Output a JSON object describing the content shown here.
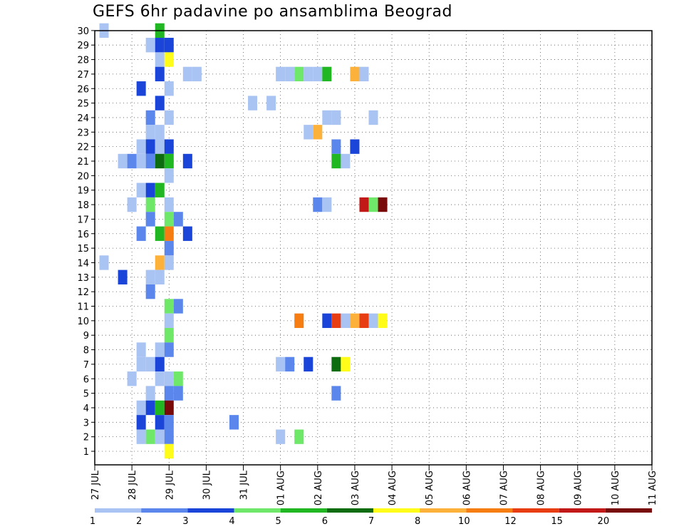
{
  "chart_data": {
    "type": "heatmap",
    "title": "GEFS 6hr padavine po ansamblima Beograd",
    "xlabel": "",
    "ylabel": "",
    "grid": true,
    "x_tick_labels": [
      "27 JUL",
      "28 JUL",
      "29 JUL",
      "30 JUL",
      "31 JUL",
      "01 AUG",
      "02 AUG",
      "03 AUG",
      "04 AUG",
      "05 AUG",
      "06 AUG",
      "07 AUG",
      "08 AUG",
      "09 AUG",
      "10 AUG",
      "11 AUG"
    ],
    "y_tick_labels": [
      "1",
      "2",
      "3",
      "4",
      "5",
      "6",
      "7",
      "8",
      "9",
      "10",
      "11",
      "12",
      "13",
      "14",
      "15",
      "16",
      "17",
      "18",
      "19",
      "20",
      "21",
      "22",
      "23",
      "24",
      "25",
      "26",
      "27",
      "28",
      "29",
      "30"
    ],
    "xlim": [
      0,
      60
    ],
    "ylim": [
      0,
      30
    ],
    "colorbar": {
      "thresholds": [
        "1",
        "2",
        "3",
        "4",
        "5",
        "6",
        "7",
        "8",
        "10",
        "12",
        "15",
        "20"
      ],
      "colors": [
        "#a9c3f2",
        "#5b86ec",
        "#1a45d8",
        "#6fe86a",
        "#20b722",
        "#0d6b10",
        "#fffc1a",
        "#fcb13a",
        "#f57d12",
        "#e83d12",
        "#c21818",
        "#780a0a"
      ]
    },
    "cells": [
      [
        30,
        7,
        4
      ],
      [
        30,
        1,
        0
      ],
      [
        29,
        6,
        0
      ],
      [
        29,
        7,
        2
      ],
      [
        29,
        8,
        2
      ],
      [
        28,
        7,
        0
      ],
      [
        28,
        8,
        6
      ],
      [
        27,
        7,
        2
      ],
      [
        27,
        10,
        0
      ],
      [
        27,
        11,
        0
      ],
      [
        27,
        20,
        0
      ],
      [
        27,
        21,
        0
      ],
      [
        27,
        22,
        3
      ],
      [
        27,
        23,
        0
      ],
      [
        27,
        24,
        0
      ],
      [
        27,
        25,
        4
      ],
      [
        27,
        28,
        7
      ],
      [
        27,
        29,
        0
      ],
      [
        26,
        5,
        2
      ],
      [
        26,
        8,
        0
      ],
      [
        25,
        7,
        2
      ],
      [
        25,
        17,
        0
      ],
      [
        25,
        19,
        0
      ],
      [
        24,
        6,
        1
      ],
      [
        24,
        8,
        0
      ],
      [
        24,
        25,
        0
      ],
      [
        24,
        26,
        0
      ],
      [
        24,
        30,
        0
      ],
      [
        23,
        6,
        0
      ],
      [
        23,
        7,
        0
      ],
      [
        23,
        23,
        0
      ],
      [
        23,
        24,
        7
      ],
      [
        22,
        5,
        0
      ],
      [
        22,
        6,
        2
      ],
      [
        22,
        7,
        0
      ],
      [
        22,
        8,
        2
      ],
      [
        22,
        26,
        1
      ],
      [
        22,
        28,
        2
      ],
      [
        21,
        3,
        0
      ],
      [
        21,
        4,
        1
      ],
      [
        21,
        5,
        0
      ],
      [
        21,
        6,
        1
      ],
      [
        21,
        7,
        5
      ],
      [
        21,
        8,
        4
      ],
      [
        21,
        10,
        2
      ],
      [
        21,
        26,
        4
      ],
      [
        21,
        27,
        0
      ],
      [
        20,
        8,
        0
      ],
      [
        19,
        5,
        0
      ],
      [
        19,
        6,
        2
      ],
      [
        19,
        7,
        4
      ],
      [
        18,
        4,
        0
      ],
      [
        18,
        6,
        3
      ],
      [
        18,
        8,
        0
      ],
      [
        18,
        24,
        1
      ],
      [
        18,
        25,
        0
      ],
      [
        18,
        29,
        10
      ],
      [
        18,
        30,
        3
      ],
      [
        18,
        31,
        11
      ],
      [
        17,
        6,
        1
      ],
      [
        17,
        8,
        3
      ],
      [
        17,
        9,
        1
      ],
      [
        16,
        5,
        1
      ],
      [
        16,
        7,
        4
      ],
      [
        16,
        8,
        8
      ],
      [
        16,
        10,
        2
      ],
      [
        15,
        8,
        1
      ],
      [
        14,
        1,
        0
      ],
      [
        14,
        7,
        7
      ],
      [
        14,
        8,
        0
      ],
      [
        13,
        3,
        2
      ],
      [
        13,
        6,
        0
      ],
      [
        13,
        7,
        0
      ],
      [
        12,
        6,
        1
      ],
      [
        11,
        8,
        3
      ],
      [
        11,
        9,
        1
      ],
      [
        10,
        8,
        0
      ],
      [
        10,
        22,
        8
      ],
      [
        10,
        25,
        2
      ],
      [
        10,
        26,
        9
      ],
      [
        10,
        27,
        0
      ],
      [
        10,
        28,
        7
      ],
      [
        10,
        29,
        9
      ],
      [
        10,
        30,
        0
      ],
      [
        10,
        31,
        6
      ],
      [
        9,
        8,
        3
      ],
      [
        8,
        5,
        0
      ],
      [
        8,
        7,
        0
      ],
      [
        8,
        8,
        1
      ],
      [
        7,
        5,
        0
      ],
      [
        7,
        6,
        0
      ],
      [
        7,
        7,
        2
      ],
      [
        7,
        20,
        0
      ],
      [
        7,
        21,
        1
      ],
      [
        7,
        23,
        2
      ],
      [
        7,
        26,
        5
      ],
      [
        7,
        27,
        6
      ],
      [
        6,
        4,
        0
      ],
      [
        6,
        7,
        0
      ],
      [
        6,
        8,
        0
      ],
      [
        6,
        9,
        3
      ],
      [
        5,
        6,
        0
      ],
      [
        5,
        8,
        1
      ],
      [
        5,
        9,
        1
      ],
      [
        5,
        26,
        1
      ],
      [
        4,
        5,
        0
      ],
      [
        4,
        6,
        2
      ],
      [
        4,
        7,
        4
      ],
      [
        4,
        8,
        11
      ],
      [
        3,
        5,
        2
      ],
      [
        3,
        7,
        2
      ],
      [
        3,
        8,
        1
      ],
      [
        3,
        15,
        1
      ],
      [
        2,
        5,
        0
      ],
      [
        2,
        6,
        3
      ],
      [
        2,
        7,
        0
      ],
      [
        2,
        8,
        1
      ],
      [
        2,
        20,
        0
      ],
      [
        2,
        22,
        3
      ],
      [
        1,
        8,
        6
      ]
    ]
  }
}
